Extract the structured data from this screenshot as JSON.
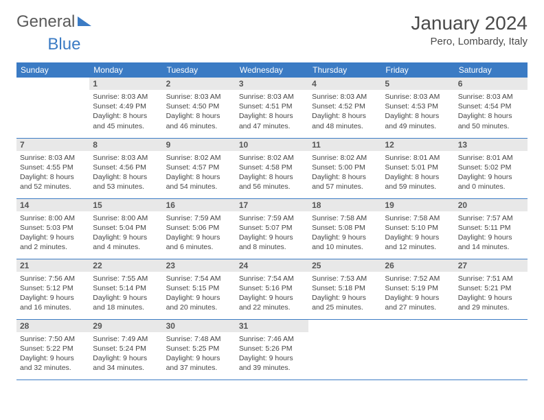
{
  "logo": {
    "text_general": "General",
    "text_blue": "Blue"
  },
  "header": {
    "month_title": "January 2024",
    "location": "Pero, Lombardy, Italy"
  },
  "colors": {
    "header_bg": "#3b7bc4",
    "header_text": "#ffffff",
    "daynum_bg": "#e8e8e8",
    "row_border": "#3b7bc4",
    "text": "#444444",
    "page_bg": "#ffffff"
  },
  "weekday_labels": [
    "Sunday",
    "Monday",
    "Tuesday",
    "Wednesday",
    "Thursday",
    "Friday",
    "Saturday"
  ],
  "weeks": [
    [
      null,
      {
        "n": "1",
        "sr": "Sunrise: 8:03 AM",
        "ss": "Sunset: 4:49 PM",
        "dl1": "Daylight: 8 hours",
        "dl2": "and 45 minutes."
      },
      {
        "n": "2",
        "sr": "Sunrise: 8:03 AM",
        "ss": "Sunset: 4:50 PM",
        "dl1": "Daylight: 8 hours",
        "dl2": "and 46 minutes."
      },
      {
        "n": "3",
        "sr": "Sunrise: 8:03 AM",
        "ss": "Sunset: 4:51 PM",
        "dl1": "Daylight: 8 hours",
        "dl2": "and 47 minutes."
      },
      {
        "n": "4",
        "sr": "Sunrise: 8:03 AM",
        "ss": "Sunset: 4:52 PM",
        "dl1": "Daylight: 8 hours",
        "dl2": "and 48 minutes."
      },
      {
        "n": "5",
        "sr": "Sunrise: 8:03 AM",
        "ss": "Sunset: 4:53 PM",
        "dl1": "Daylight: 8 hours",
        "dl2": "and 49 minutes."
      },
      {
        "n": "6",
        "sr": "Sunrise: 8:03 AM",
        "ss": "Sunset: 4:54 PM",
        "dl1": "Daylight: 8 hours",
        "dl2": "and 50 minutes."
      }
    ],
    [
      {
        "n": "7",
        "sr": "Sunrise: 8:03 AM",
        "ss": "Sunset: 4:55 PM",
        "dl1": "Daylight: 8 hours",
        "dl2": "and 52 minutes."
      },
      {
        "n": "8",
        "sr": "Sunrise: 8:03 AM",
        "ss": "Sunset: 4:56 PM",
        "dl1": "Daylight: 8 hours",
        "dl2": "and 53 minutes."
      },
      {
        "n": "9",
        "sr": "Sunrise: 8:02 AM",
        "ss": "Sunset: 4:57 PM",
        "dl1": "Daylight: 8 hours",
        "dl2": "and 54 minutes."
      },
      {
        "n": "10",
        "sr": "Sunrise: 8:02 AM",
        "ss": "Sunset: 4:58 PM",
        "dl1": "Daylight: 8 hours",
        "dl2": "and 56 minutes."
      },
      {
        "n": "11",
        "sr": "Sunrise: 8:02 AM",
        "ss": "Sunset: 5:00 PM",
        "dl1": "Daylight: 8 hours",
        "dl2": "and 57 minutes."
      },
      {
        "n": "12",
        "sr": "Sunrise: 8:01 AM",
        "ss": "Sunset: 5:01 PM",
        "dl1": "Daylight: 8 hours",
        "dl2": "and 59 minutes."
      },
      {
        "n": "13",
        "sr": "Sunrise: 8:01 AM",
        "ss": "Sunset: 5:02 PM",
        "dl1": "Daylight: 9 hours",
        "dl2": "and 0 minutes."
      }
    ],
    [
      {
        "n": "14",
        "sr": "Sunrise: 8:00 AM",
        "ss": "Sunset: 5:03 PM",
        "dl1": "Daylight: 9 hours",
        "dl2": "and 2 minutes."
      },
      {
        "n": "15",
        "sr": "Sunrise: 8:00 AM",
        "ss": "Sunset: 5:04 PM",
        "dl1": "Daylight: 9 hours",
        "dl2": "and 4 minutes."
      },
      {
        "n": "16",
        "sr": "Sunrise: 7:59 AM",
        "ss": "Sunset: 5:06 PM",
        "dl1": "Daylight: 9 hours",
        "dl2": "and 6 minutes."
      },
      {
        "n": "17",
        "sr": "Sunrise: 7:59 AM",
        "ss": "Sunset: 5:07 PM",
        "dl1": "Daylight: 9 hours",
        "dl2": "and 8 minutes."
      },
      {
        "n": "18",
        "sr": "Sunrise: 7:58 AM",
        "ss": "Sunset: 5:08 PM",
        "dl1": "Daylight: 9 hours",
        "dl2": "and 10 minutes."
      },
      {
        "n": "19",
        "sr": "Sunrise: 7:58 AM",
        "ss": "Sunset: 5:10 PM",
        "dl1": "Daylight: 9 hours",
        "dl2": "and 12 minutes."
      },
      {
        "n": "20",
        "sr": "Sunrise: 7:57 AM",
        "ss": "Sunset: 5:11 PM",
        "dl1": "Daylight: 9 hours",
        "dl2": "and 14 minutes."
      }
    ],
    [
      {
        "n": "21",
        "sr": "Sunrise: 7:56 AM",
        "ss": "Sunset: 5:12 PM",
        "dl1": "Daylight: 9 hours",
        "dl2": "and 16 minutes."
      },
      {
        "n": "22",
        "sr": "Sunrise: 7:55 AM",
        "ss": "Sunset: 5:14 PM",
        "dl1": "Daylight: 9 hours",
        "dl2": "and 18 minutes."
      },
      {
        "n": "23",
        "sr": "Sunrise: 7:54 AM",
        "ss": "Sunset: 5:15 PM",
        "dl1": "Daylight: 9 hours",
        "dl2": "and 20 minutes."
      },
      {
        "n": "24",
        "sr": "Sunrise: 7:54 AM",
        "ss": "Sunset: 5:16 PM",
        "dl1": "Daylight: 9 hours",
        "dl2": "and 22 minutes."
      },
      {
        "n": "25",
        "sr": "Sunrise: 7:53 AM",
        "ss": "Sunset: 5:18 PM",
        "dl1": "Daylight: 9 hours",
        "dl2": "and 25 minutes."
      },
      {
        "n": "26",
        "sr": "Sunrise: 7:52 AM",
        "ss": "Sunset: 5:19 PM",
        "dl1": "Daylight: 9 hours",
        "dl2": "and 27 minutes."
      },
      {
        "n": "27",
        "sr": "Sunrise: 7:51 AM",
        "ss": "Sunset: 5:21 PM",
        "dl1": "Daylight: 9 hours",
        "dl2": "and 29 minutes."
      }
    ],
    [
      {
        "n": "28",
        "sr": "Sunrise: 7:50 AM",
        "ss": "Sunset: 5:22 PM",
        "dl1": "Daylight: 9 hours",
        "dl2": "and 32 minutes."
      },
      {
        "n": "29",
        "sr": "Sunrise: 7:49 AM",
        "ss": "Sunset: 5:24 PM",
        "dl1": "Daylight: 9 hours",
        "dl2": "and 34 minutes."
      },
      {
        "n": "30",
        "sr": "Sunrise: 7:48 AM",
        "ss": "Sunset: 5:25 PM",
        "dl1": "Daylight: 9 hours",
        "dl2": "and 37 minutes."
      },
      {
        "n": "31",
        "sr": "Sunrise: 7:46 AM",
        "ss": "Sunset: 5:26 PM",
        "dl1": "Daylight: 9 hours",
        "dl2": "and 39 minutes."
      },
      null,
      null,
      null
    ]
  ]
}
